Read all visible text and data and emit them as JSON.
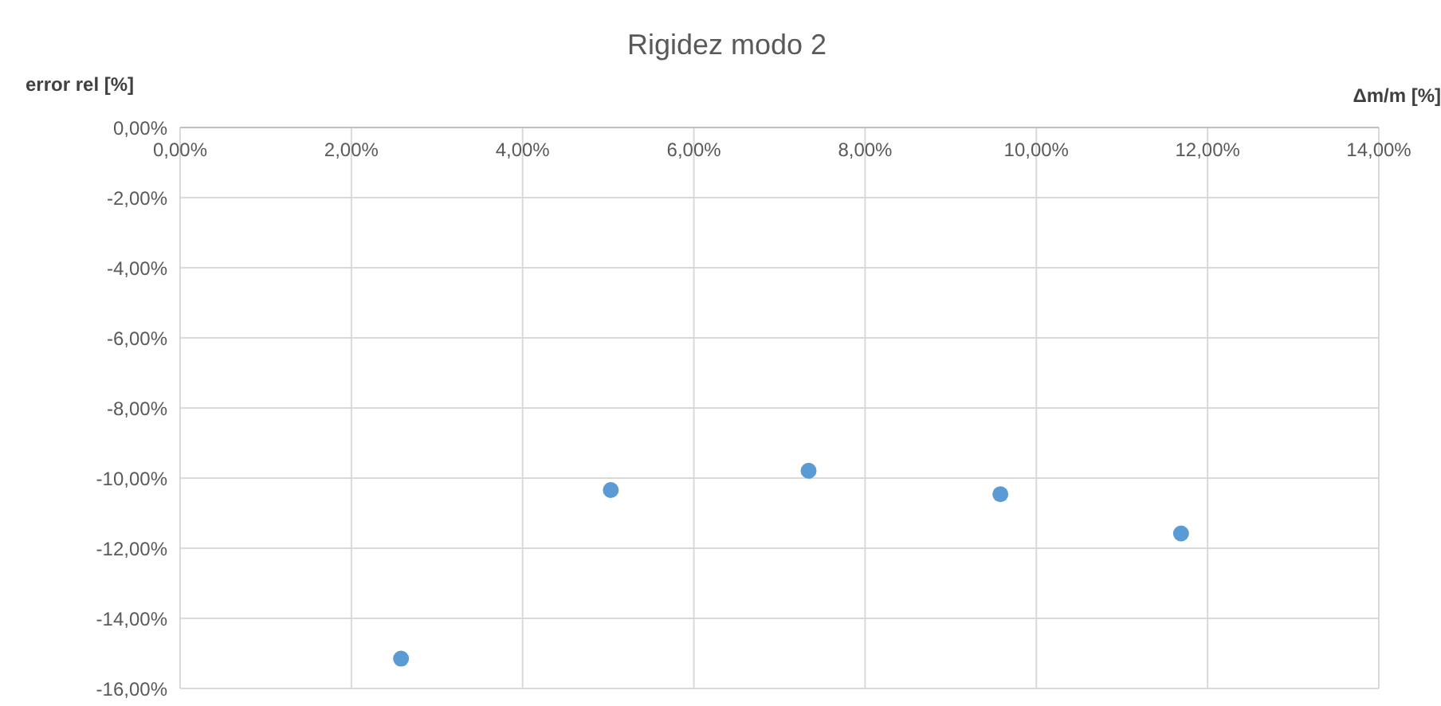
{
  "chart_data": {
    "type": "scatter",
    "title": "Rigidez modo 2",
    "xlabel": "Δm/m [%]",
    "ylabel": "error rel [%]",
    "x": [
      2.58,
      5.03,
      7.34,
      9.58,
      11.69
    ],
    "series": [
      {
        "color": "#5b9bd5",
        "values": [
          -15.15,
          -10.34,
          -9.79,
          -10.46,
          -11.58
        ]
      }
    ],
    "xlim": [
      0,
      14
    ],
    "ylim": [
      -16,
      0
    ],
    "xticks": [
      {
        "value": 0,
        "label": "0,00%"
      },
      {
        "value": 2,
        "label": "2,00%"
      },
      {
        "value": 4,
        "label": "4,00%"
      },
      {
        "value": 6,
        "label": "6,00%"
      },
      {
        "value": 8,
        "label": "8,00%"
      },
      {
        "value": 10,
        "label": "10,00%"
      },
      {
        "value": 12,
        "label": "12,00%"
      },
      {
        "value": 14,
        "label": "14,00%"
      }
    ],
    "yticks": [
      {
        "value": 0,
        "label": "0,00%"
      },
      {
        "value": -2,
        "label": "-2,00%"
      },
      {
        "value": -4,
        "label": "-4,00%"
      },
      {
        "value": -6,
        "label": "-6,00%"
      },
      {
        "value": -8,
        "label": "-8,00%"
      },
      {
        "value": -10,
        "label": "-10,00%"
      },
      {
        "value": -12,
        "label": "-12,00%"
      },
      {
        "value": -14,
        "label": "-14,00%"
      },
      {
        "value": -16,
        "label": "-16,00%"
      }
    ],
    "grid": true,
    "marker": "circle",
    "legend": false
  }
}
